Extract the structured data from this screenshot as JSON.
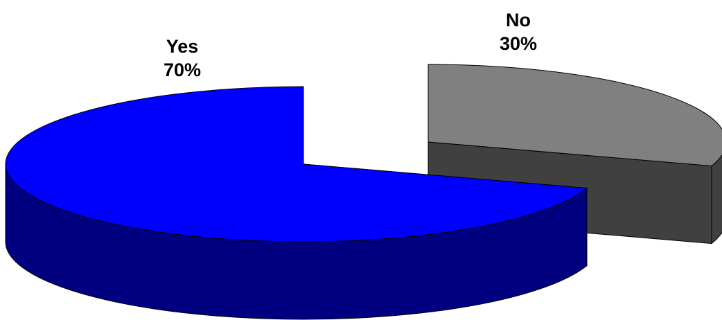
{
  "chart_data": {
    "type": "pie",
    "style": "3d-exploded",
    "title": "",
    "slices": [
      {
        "label": "Yes",
        "value": 70,
        "value_label": "70%",
        "top_color": "#0000FF",
        "side_color": "#000080"
      },
      {
        "label": "No",
        "value": 30,
        "value_label": "30%",
        "top_color": "#808080",
        "side_color": "#404040"
      }
    ],
    "outline_color": "#000000",
    "legend": "none"
  }
}
